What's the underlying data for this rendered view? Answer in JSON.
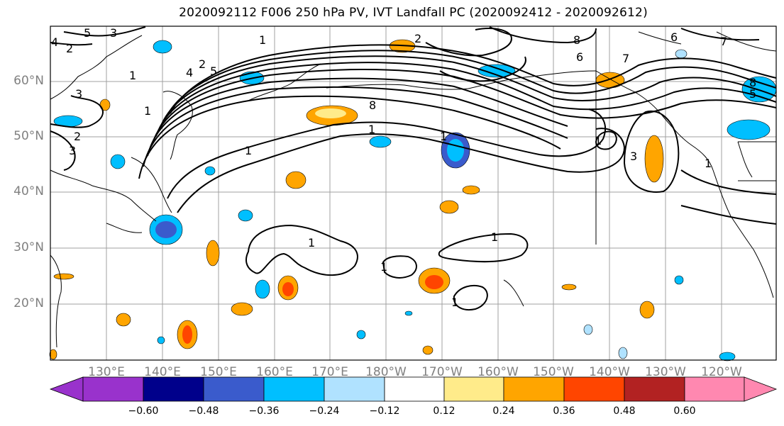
{
  "title": "2020092112 F006 250 hPa PV, IVT Landfall PC (2020092412 - 2020092612)",
  "lat_labels": [
    "60°N",
    "50°N",
    "40°N",
    "30°N",
    "20°N"
  ],
  "lon_labels": [
    "130°E",
    "140°E",
    "150°E",
    "160°E",
    "170°E",
    "180°W",
    "170°W",
    "160°W",
    "150°W",
    "140°W",
    "130°W",
    "120°W"
  ],
  "colorbar": {
    "ticks": [
      "−0.60",
      "−0.48",
      "−0.36",
      "−0.24",
      "−0.12",
      "0.12",
      "0.24",
      "0.36",
      "0.48",
      "0.60"
    ],
    "colors": [
      "#9932cc",
      "#00008b",
      "#3a5bcc",
      "#00bfff",
      "#b0e2ff",
      "#ffffff",
      "#ffeb8a",
      "#ffa500",
      "#ff4500",
      "#b22222",
      "#ff88b0"
    ]
  },
  "contour_labels": [
    "1",
    "2",
    "3",
    "4",
    "5",
    "6",
    "7",
    "8"
  ]
}
